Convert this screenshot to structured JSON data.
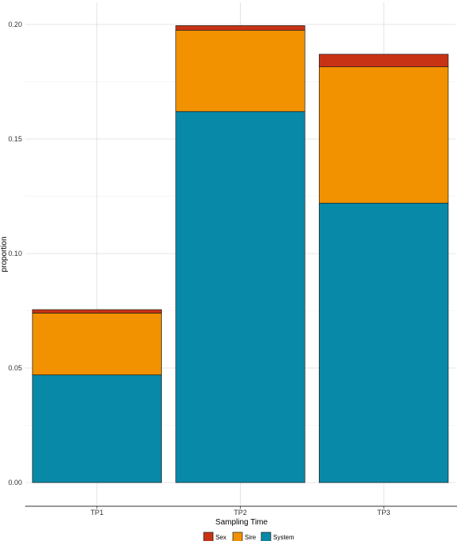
{
  "chart_data": {
    "type": "bar",
    "stacked": true,
    "categories": [
      "TP1",
      "TP2",
      "TP3"
    ],
    "series": [
      {
        "name": "System",
        "values": [
          0.047,
          0.162,
          0.122
        ],
        "color": "#0889a8"
      },
      {
        "name": "Sire",
        "values": [
          0.027,
          0.0355,
          0.0595
        ],
        "color": "#f29200"
      },
      {
        "name": "Sex",
        "values": [
          0.0015,
          0.002,
          0.0055
        ],
        "color": "#c83315"
      }
    ],
    "xlabel": "Sampling Time",
    "ylabel": "proportion",
    "ylim": [
      0,
      0.2
    ],
    "yticks": [
      "0.00",
      "0.05",
      "0.10",
      "0.15",
      "0.20"
    ],
    "grid": true,
    "legend_position": "bottom",
    "legend_order": [
      "Sex",
      "Sire",
      "System"
    ]
  }
}
